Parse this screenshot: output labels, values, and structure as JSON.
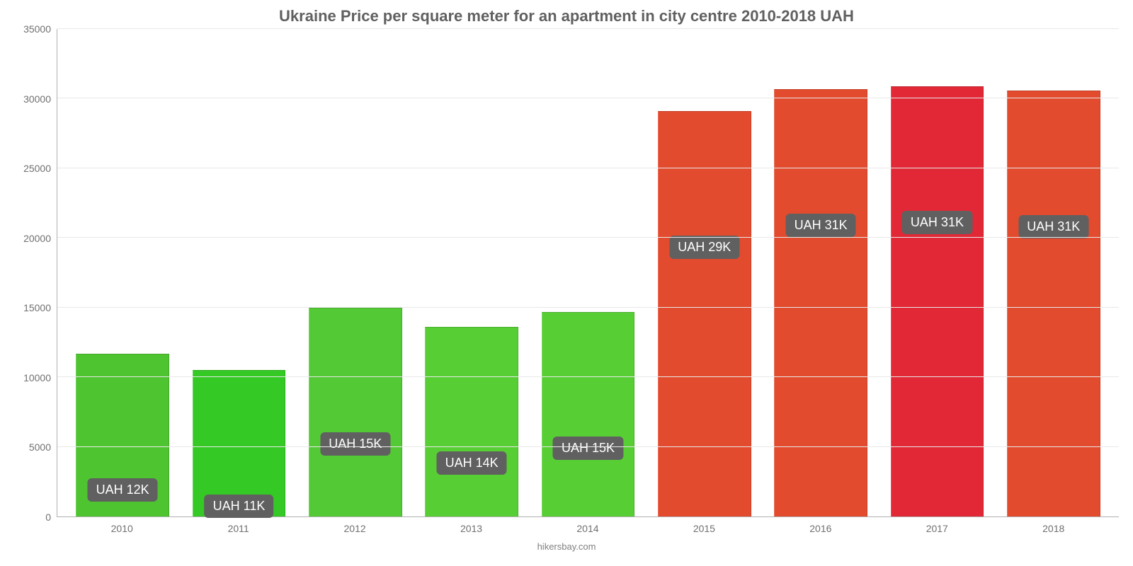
{
  "chart": {
    "type": "bar",
    "title": "Ukraine Price per square meter for an apartment in city centre 2010-2018 UAH",
    "title_fontsize": 22,
    "title_color": "#606060",
    "source": "hikersbay.com",
    "source_fontsize": 13,
    "source_color": "#808080",
    "background_color": "#ffffff",
    "grid_color": "#e8e8e8",
    "axis_color": "#b0b0b0",
    "tick_color": "#707070",
    "tick_fontsize": 14,
    "label_fontsize": 18,
    "label_bg": "#606060",
    "label_text_color": "#ffffff",
    "ylim": [
      0,
      35000
    ],
    "ytick_step": 5000,
    "yticks": [
      0,
      5000,
      10000,
      15000,
      20000,
      25000,
      30000,
      35000
    ],
    "categories": [
      "2010",
      "2011",
      "2012",
      "2013",
      "2014",
      "2015",
      "2016",
      "2017",
      "2018"
    ],
    "values": [
      11700,
      10500,
      15000,
      13600,
      14700,
      29100,
      30700,
      30900,
      30600
    ],
    "bar_labels": [
      "UAH 12K",
      "UAH 11K",
      "UAH 15K",
      "UAH 14K",
      "UAH 15K",
      "UAH 29K",
      "UAH 31K",
      "UAH 31K",
      "UAH 31K"
    ],
    "bar_colors": [
      "#4fc431",
      "#34c924",
      "#54c936",
      "#58ce35",
      "#58ce35",
      "#e34b2f",
      "#e34b2f",
      "#e22836",
      "#e34b2f"
    ],
    "bar_width": 0.8,
    "label_offset_from_top": 175
  }
}
